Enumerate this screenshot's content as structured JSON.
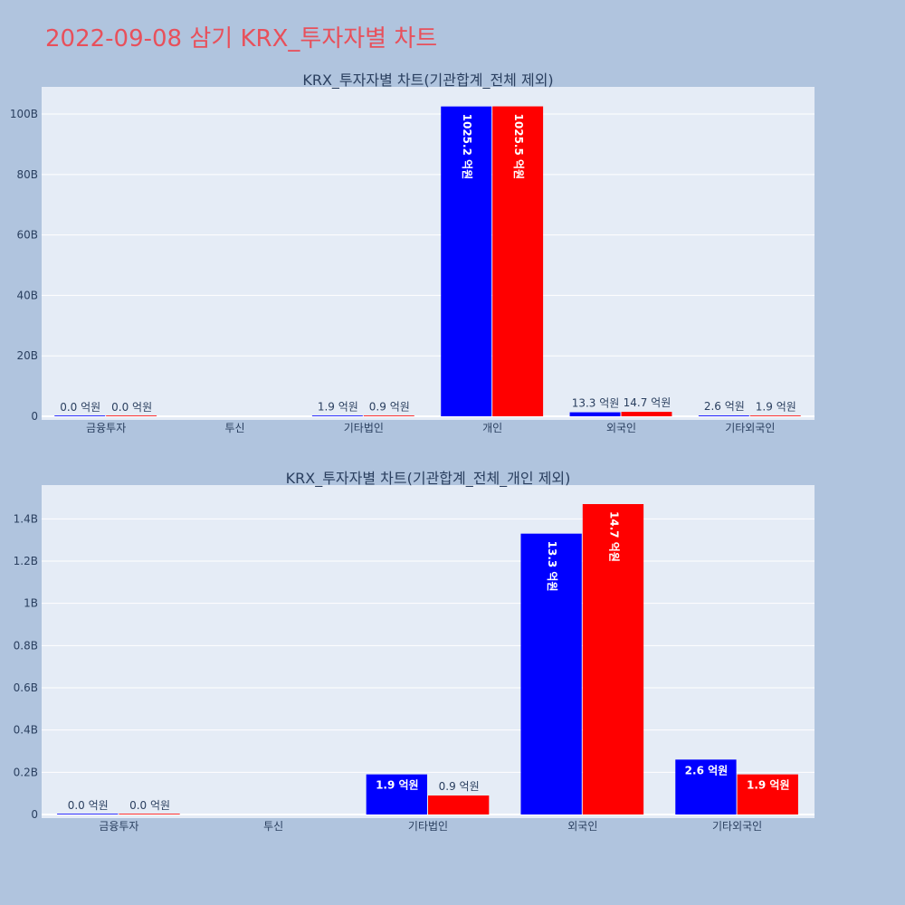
{
  "page": {
    "title": "2022-09-08 삼기 KRX_투자자별 차트"
  },
  "colors": {
    "buy": "#0000ff",
    "sell": "#ff0000",
    "plot_bg": "#e5ecf6",
    "paper_bg": "#b0c4de",
    "title": "#e8505b"
  },
  "chart_data": [
    {
      "type": "bar",
      "title": "KRX_투자자별 차트(기관합계_전체 제외)",
      "categories": [
        "금융투자",
        "투신",
        "기타법인",
        "개인",
        "외국인",
        "기타외국인"
      ],
      "series": [
        {
          "color": "#0000ff",
          "values": [
            0.0,
            null,
            190000000,
            102520000000,
            1330000000,
            260000000
          ],
          "labels": [
            "0.0 억원",
            "",
            "1.9 억원",
            "1025.2 억원",
            "13.3 억원",
            "2.6 억원"
          ]
        },
        {
          "color": "#ff0000",
          "values": [
            0.0,
            null,
            90000000,
            102550000000,
            1470000000,
            190000000
          ],
          "labels": [
            "0.0 억원",
            "",
            "0.9 억원",
            "1025.5 억원",
            "14.7 억원",
            "1.9 억원"
          ]
        }
      ],
      "ylim": [
        0,
        109000000000
      ],
      "yticks": [
        0,
        20000000000,
        40000000000,
        60000000000,
        80000000000,
        100000000000
      ],
      "ytick_labels": [
        "0",
        "20B",
        "40B",
        "60B",
        "80B",
        "100B"
      ],
      "grid": true
    },
    {
      "type": "bar",
      "title": "KRX_투자자별 차트(기관합계_전체_개인 제외)",
      "categories": [
        "금융투자",
        "투신",
        "기타법인",
        "외국인",
        "기타외국인"
      ],
      "series": [
        {
          "color": "#0000ff",
          "values": [
            0.0,
            null,
            190000000,
            1330000000,
            260000000
          ],
          "labels": [
            "0.0 억원",
            "",
            "1.9 억원",
            "13.3 억원",
            "2.6 억원"
          ]
        },
        {
          "color": "#ff0000",
          "values": [
            0.0,
            null,
            90000000,
            1470000000,
            190000000
          ],
          "labels": [
            "0.0 억원",
            "",
            "0.9 억원",
            "14.7 억원",
            "1.9 억원"
          ]
        }
      ],
      "ylim": [
        0,
        1560000000
      ],
      "yticks": [
        0,
        200000000,
        400000000,
        600000000,
        800000000,
        1000000000,
        1200000000,
        1400000000
      ],
      "ytick_labels": [
        "0",
        "0.2B",
        "0.4B",
        "0.6B",
        "0.8B",
        "1B",
        "1.2B",
        "1.4B"
      ],
      "grid": true
    }
  ]
}
